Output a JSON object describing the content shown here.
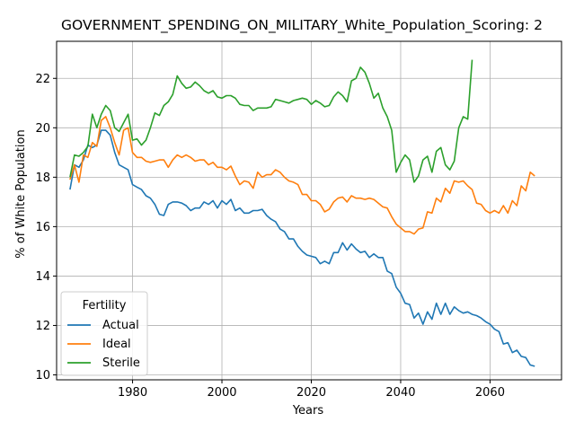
{
  "chart_data": {
    "type": "line",
    "title": "GOVERNMENT_SPENDING_ON_MILITARY_White_Population_Scoring: 2",
    "xlabel": "Years",
    "ylabel": "% of White Population",
    "xlim": [
      1963,
      2076
    ],
    "ylim": [
      9.8,
      23.5
    ],
    "xticks": [
      1980,
      2000,
      2020,
      2040,
      2060
    ],
    "yticks": [
      10,
      12,
      14,
      16,
      18,
      20,
      22
    ],
    "grid": true,
    "legend": {
      "title": "Fertility",
      "placement": "lower-left"
    },
    "series": [
      {
        "name": "Actual",
        "color": "#1f77b4",
        "x": [
          1966,
          1967,
          1968,
          1969,
          1970,
          1971,
          1972,
          1973,
          1974,
          1975,
          1976,
          1977,
          1978,
          1979,
          1980,
          1981,
          1982,
          1983,
          1984,
          1985,
          1986,
          1987,
          1988,
          1989,
          1990,
          1991,
          1992,
          1993,
          1994,
          1995,
          1996,
          1997,
          1998,
          1999,
          2000,
          2001,
          2002,
          2003,
          2004,
          2005,
          2006,
          2007,
          2008,
          2009,
          2010,
          2011,
          2012,
          2013,
          2014,
          2015,
          2016,
          2017,
          2018,
          2019,
          2020,
          2021,
          2022,
          2023,
          2024,
          2025,
          2026,
          2027,
          2028,
          2029,
          2030,
          2031,
          2032,
          2033,
          2034,
          2035,
          2036,
          2037,
          2038,
          2039,
          2040,
          2041,
          2042,
          2043,
          2044,
          2045,
          2046,
          2047,
          2048,
          2049,
          2050,
          2051,
          2052,
          2053,
          2054,
          2055,
          2056,
          2057,
          2058,
          2059,
          2060,
          2061,
          2062,
          2063,
          2064,
          2065,
          2066,
          2067,
          2068,
          2069,
          2070
        ],
        "y": [
          17.5,
          18.5,
          18.4,
          18.7,
          19.3,
          19.2,
          19.3,
          19.9,
          19.9,
          19.7,
          19.0,
          18.5,
          18.4,
          18.3,
          17.7,
          17.6,
          17.5,
          17.25,
          17.15,
          16.9,
          16.5,
          16.45,
          16.9,
          17.0,
          17.0,
          16.95,
          16.85,
          16.65,
          16.75,
          16.75,
          17.0,
          16.9,
          17.05,
          16.75,
          17.05,
          16.9,
          17.1,
          16.65,
          16.75,
          16.55,
          16.55,
          16.65,
          16.65,
          16.7,
          16.45,
          16.3,
          16.2,
          15.9,
          15.8,
          15.5,
          15.5,
          15.2,
          15.0,
          14.85,
          14.8,
          14.75,
          14.5,
          14.6,
          14.5,
          14.95,
          14.95,
          15.35,
          15.05,
          15.3,
          15.1,
          14.95,
          15.0,
          14.75,
          14.9,
          14.75,
          14.75,
          14.2,
          14.1,
          13.55,
          13.3,
          12.9,
          12.85,
          12.3,
          12.5,
          12.05,
          12.55,
          12.25,
          12.9,
          12.45,
          12.9,
          12.45,
          12.75,
          12.6,
          12.5,
          12.55,
          12.45,
          12.4,
          12.3,
          12.15,
          12.05,
          11.85,
          11.75,
          11.25,
          11.3,
          10.9,
          11.0,
          10.75,
          10.7,
          10.4,
          10.35
        ]
      },
      {
        "name": "Ideal",
        "color": "#ff7f0e",
        "x": [
          1966,
          1967,
          1968,
          1969,
          1970,
          1971,
          1972,
          1973,
          1974,
          1975,
          1976,
          1977,
          1978,
          1979,
          1980,
          1981,
          1982,
          1983,
          1984,
          1985,
          1986,
          1987,
          1988,
          1989,
          1990,
          1991,
          1992,
          1993,
          1994,
          1995,
          1996,
          1997,
          1998,
          1999,
          2000,
          2001,
          2002,
          2003,
          2004,
          2005,
          2006,
          2007,
          2008,
          2009,
          2010,
          2011,
          2012,
          2013,
          2014,
          2015,
          2016,
          2017,
          2018,
          2019,
          2020,
          2021,
          2022,
          2023,
          2024,
          2025,
          2026,
          2027,
          2028,
          2029,
          2030,
          2031,
          2032,
          2033,
          2034,
          2035,
          2036,
          2037,
          2038,
          2039,
          2040,
          2041,
          2042,
          2043,
          2044,
          2045,
          2046,
          2047,
          2048,
          2049,
          2050,
          2051,
          2052,
          2053,
          2054,
          2055,
          2056,
          2057,
          2058,
          2059,
          2060,
          2061,
          2062,
          2063,
          2064,
          2065,
          2066,
          2067,
          2068,
          2069,
          2070
        ],
        "y": [
          17.9,
          18.5,
          17.8,
          18.9,
          18.8,
          19.4,
          19.25,
          20.3,
          20.45,
          20.0,
          19.4,
          18.9,
          19.9,
          20.0,
          19.0,
          18.8,
          18.8,
          18.65,
          18.6,
          18.65,
          18.7,
          18.7,
          18.4,
          18.7,
          18.9,
          18.8,
          18.9,
          18.8,
          18.65,
          18.7,
          18.7,
          18.5,
          18.6,
          18.4,
          18.4,
          18.3,
          18.45,
          18.05,
          17.7,
          17.85,
          17.8,
          17.55,
          18.2,
          18.0,
          18.1,
          18.1,
          18.3,
          18.2,
          18.0,
          17.85,
          17.8,
          17.7,
          17.3,
          17.3,
          17.05,
          17.05,
          16.9,
          16.6,
          16.7,
          17.0,
          17.15,
          17.2,
          17.0,
          17.25,
          17.15,
          17.15,
          17.1,
          17.15,
          17.1,
          16.95,
          16.8,
          16.75,
          16.4,
          16.1,
          15.95,
          15.8,
          15.8,
          15.7,
          15.9,
          15.95,
          16.6,
          16.55,
          17.15,
          17.0,
          17.55,
          17.35,
          17.85,
          17.8,
          17.85,
          17.65,
          17.5,
          16.95,
          16.9,
          16.65,
          16.55,
          16.65,
          16.55,
          16.85,
          16.55,
          17.05,
          16.85,
          17.65,
          17.45,
          18.2,
          18.05
        ]
      },
      {
        "name": "Sterile",
        "color": "#2ca02c",
        "x": [
          1966,
          1967,
          1968,
          1969,
          1970,
          1971,
          1972,
          1973,
          1974,
          1975,
          1976,
          1977,
          1978,
          1979,
          1980,
          1981,
          1982,
          1983,
          1984,
          1985,
          1986,
          1987,
          1988,
          1989,
          1990,
          1991,
          1992,
          1993,
          1994,
          1995,
          1996,
          1997,
          1998,
          1999,
          2000,
          2001,
          2002,
          2003,
          2004,
          2005,
          2006,
          2007,
          2008,
          2009,
          2010,
          2011,
          2012,
          2013,
          2014,
          2015,
          2016,
          2017,
          2018,
          2019,
          2020,
          2021,
          2022,
          2023,
          2024,
          2025,
          2026,
          2027,
          2028,
          2029,
          2030,
          2031,
          2032,
          2033,
          2034,
          2035,
          2036,
          2037,
          2038,
          2039,
          2040,
          2041,
          2042,
          2043,
          2044,
          2045,
          2046,
          2047,
          2048,
          2049,
          2050,
          2051,
          2052,
          2053,
          2054,
          2055,
          2056
        ],
        "y": [
          18.0,
          18.9,
          18.85,
          19.0,
          19.25,
          20.55,
          20.0,
          20.55,
          20.9,
          20.7,
          20.0,
          19.85,
          20.2,
          20.55,
          19.5,
          19.55,
          19.3,
          19.5,
          20.0,
          20.6,
          20.5,
          20.9,
          21.05,
          21.35,
          22.1,
          21.8,
          21.6,
          21.65,
          21.85,
          21.7,
          21.5,
          21.4,
          21.5,
          21.25,
          21.2,
          21.3,
          21.3,
          21.2,
          20.95,
          20.9,
          20.9,
          20.7,
          20.8,
          20.8,
          20.8,
          20.85,
          21.15,
          21.1,
          21.05,
          21.0,
          21.1,
          21.15,
          21.2,
          21.15,
          20.95,
          21.1,
          21.0,
          20.85,
          20.9,
          21.25,
          21.45,
          21.3,
          21.05,
          21.9,
          22.0,
          22.45,
          22.25,
          21.8,
          21.2,
          21.4,
          20.8,
          20.45,
          19.9,
          18.2,
          18.6,
          18.9,
          18.7,
          17.8,
          18.05,
          18.7,
          18.85,
          18.2,
          19.05,
          19.2,
          18.5,
          18.3,
          18.65,
          20.0,
          20.45,
          20.35,
          22.75
        ]
      }
    ]
  }
}
